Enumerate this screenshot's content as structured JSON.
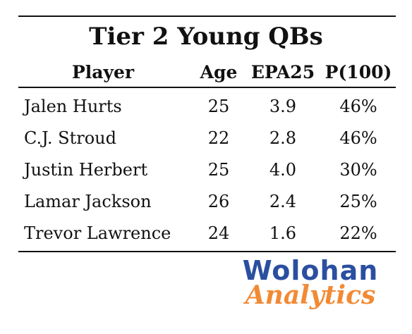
{
  "table": {
    "title": "Tier 2 Young QBs",
    "columns": [
      "Player",
      "Age",
      "EPA25",
      "P(100)"
    ],
    "rows": [
      {
        "player": "Jalen Hurts",
        "age": "25",
        "epa25": "3.9",
        "p100": "46%"
      },
      {
        "player": "C.J. Stroud",
        "age": "22",
        "epa25": "2.8",
        "p100": "46%"
      },
      {
        "player": "Justin Herbert",
        "age": "25",
        "epa25": "4.0",
        "p100": "30%"
      },
      {
        "player": "Lamar Jackson",
        "age": "26",
        "epa25": "2.4",
        "p100": "25%"
      },
      {
        "player": "Trevor Lawrence",
        "age": "24",
        "epa25": "1.6",
        "p100": "22%"
      }
    ]
  },
  "logo": {
    "line1": "Wolohan",
    "line2": "Analytics",
    "color_primary": "#2b4fa0",
    "color_accent": "#f28a35"
  }
}
